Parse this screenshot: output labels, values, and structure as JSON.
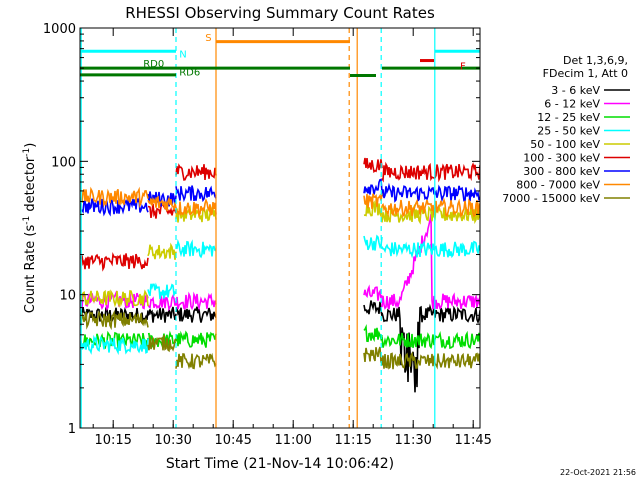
{
  "chart_data": {
    "type": "line",
    "title": "RHESSI Observing Summary Count Rates",
    "xlabel": "Start Time (21-Nov-14 10:06:42)",
    "ylabel_main": "Count Rate (s",
    "ylabel_sup1": "-1",
    "ylabel_mid": " detector",
    "ylabel_sup2": "-1",
    "ylabel_end": ")",
    "timestamp": "22-Oct-2021 21:56",
    "y_scale": "log",
    "ylim": [
      1,
      1000
    ],
    "xlim_minutes": [
      0,
      100
    ],
    "x_tick_labels": [
      "10:15",
      "10:30",
      "10:45",
      "11:00",
      "11:15",
      "11:30",
      "11:45"
    ],
    "x_tick_minutes": [
      8.3,
      23.3,
      38.3,
      53.3,
      68.3,
      83.3,
      98.3
    ],
    "y_tick_labels": [
      "1",
      "10",
      "100",
      "1000"
    ],
    "y_tick_values": [
      1,
      10,
      100,
      1000
    ],
    "legend_header": [
      "Det 1,3,6,9,",
      "FDecim 1, Att 0"
    ],
    "series": [
      {
        "name": "3 - 6 keV",
        "color": "#000000",
        "base": 7,
        "level": 0.85
      },
      {
        "name": "6 - 12 keV",
        "color": "#ff00ff",
        "base": 9,
        "level": 0.95
      },
      {
        "name": "12 - 25 keV",
        "color": "#00dd00",
        "base": 4.5,
        "level": 0.66
      },
      {
        "name": "25 - 50 keV",
        "color": "#00ffff",
        "base": 3.5,
        "level": 1.34
      },
      {
        "name": "50 - 100 keV",
        "color": "#cccc00",
        "base": 8,
        "level": 1.6
      },
      {
        "name": "100 - 300 keV",
        "color": "#dd0000",
        "base": 15,
        "level": 1.92
      },
      {
        "name": "300 - 800 keV",
        "color": "#0000ff",
        "base": 45,
        "level": 1.76
      },
      {
        "name": "800 - 7000 keV",
        "color": "#ff8800",
        "base": 55,
        "level": 1.65
      },
      {
        "name": "7000 - 15000 keV",
        "color": "#808000",
        "base": 7,
        "level": 0.5
      }
    ],
    "series_segments": [
      {
        "t0": 0,
        "t1": 17
      },
      {
        "t0": 17,
        "t1": 24
      },
      {
        "t0": 24,
        "t1": 34
      },
      {
        "t0": 71,
        "t1": 75.5
      },
      {
        "t0": 75.5,
        "t1": 103
      }
    ],
    "annotations": [
      {
        "text": "N",
        "color": "#00ffff",
        "t": 24.8,
        "v": 600
      },
      {
        "text": "S",
        "color": "#ff8800",
        "t": 31.3,
        "v": 800
      },
      {
        "text": "F",
        "color": "#dd0000",
        "t": 95.0,
        "v": 490
      },
      {
        "text": "RD0",
        "color": "#007700",
        "t": 15.8,
        "v": 510
      },
      {
        "text": "RD6",
        "color": "#007700",
        "t": 24.8,
        "v": 440
      }
    ],
    "flag_bars": [
      {
        "color": "#00ffff",
        "t0": 0,
        "t1": 24,
        "v": 670
      },
      {
        "color": "#00ffff",
        "t0": 88.7,
        "t1": 103,
        "v": 670
      },
      {
        "color": "#ff8800",
        "t0": 34,
        "t1": 67.5,
        "v": 790
      },
      {
        "color": "#dd0000",
        "t0": 85,
        "t1": 88.5,
        "v": 570
      },
      {
        "color": "#007700",
        "t0": 0,
        "t1": 67.5,
        "v": 500
      },
      {
        "color": "#007700",
        "t0": 67.5,
        "t1": 74,
        "v": 440
      },
      {
        "color": "#007700",
        "t0": 75.5,
        "t1": 103,
        "v": 500
      },
      {
        "color": "#007700",
        "t0": 0,
        "t1": 24,
        "v": 445
      }
    ],
    "vertical_lines": [
      {
        "color": "#00ffff",
        "t": 0.3,
        "style": "solid"
      },
      {
        "color": "#00ffff",
        "t": 24.0,
        "style": "dashed"
      },
      {
        "color": "#ff8800",
        "t": 34.0,
        "style": "solid"
      },
      {
        "color": "#ff8800",
        "t": 67.3,
        "style": "dashed"
      },
      {
        "color": "#ff8800",
        "t": 69.3,
        "style": "solid"
      },
      {
        "color": "#00ffff",
        "t": 75.3,
        "style": "dashed"
      },
      {
        "color": "#00ffff",
        "t": 88.7,
        "style": "solid"
      },
      {
        "color": "#00ffff",
        "t": 101.0,
        "style": "dashed"
      }
    ]
  }
}
